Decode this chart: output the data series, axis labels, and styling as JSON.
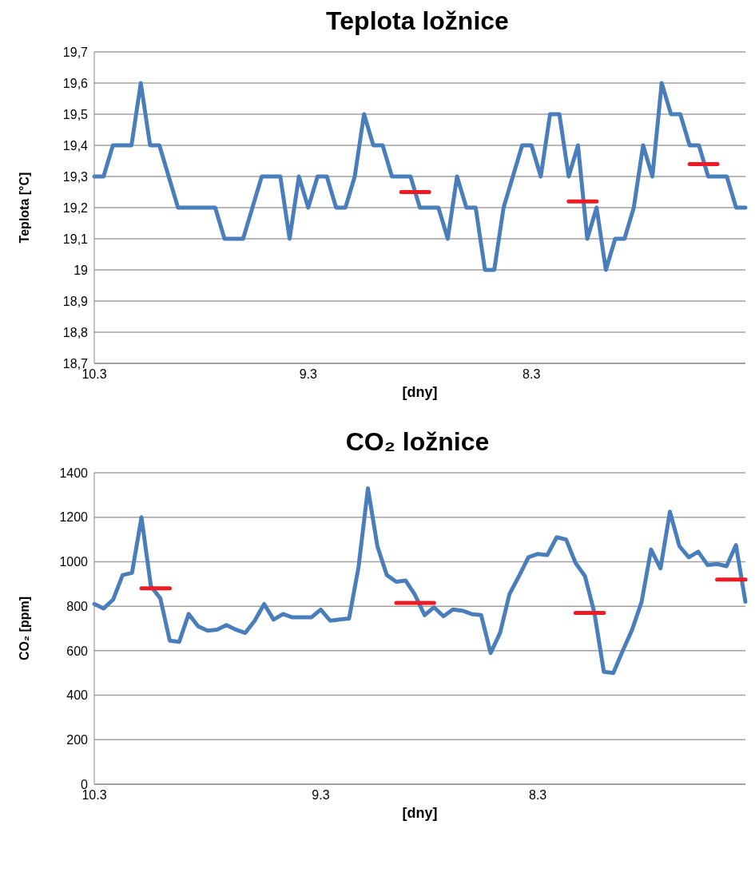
{
  "chart_data": [
    {
      "type": "line",
      "title": "Teplota  ložnice",
      "xlabel": "[dny]",
      "ylabel": "Teplota [°C]",
      "categories": [
        "10.3",
        null,
        null,
        null,
        null,
        null,
        null,
        null,
        null,
        null,
        null,
        null,
        null,
        null,
        null,
        null,
        null,
        null,
        null,
        null,
        null,
        null,
        null,
        "9.3",
        null,
        null,
        null,
        null,
        null,
        null,
        null,
        null,
        null,
        null,
        null,
        null,
        null,
        null,
        null,
        null,
        null,
        null,
        null,
        null,
        null,
        null,
        null,
        "8.3",
        null,
        null,
        null,
        null,
        null,
        null,
        null,
        null,
        null,
        null,
        null,
        null,
        null,
        null,
        null,
        null,
        null,
        null,
        null,
        null,
        null,
        null,
        null
      ],
      "series": [
        {
          "color": "#4a7ebb",
          "values": [
            19.3,
            19.3,
            19.4,
            19.4,
            19.4,
            19.6,
            19.4,
            19.4,
            19.3,
            19.2,
            19.2,
            19.2,
            19.2,
            19.2,
            19.1,
            19.1,
            19.1,
            19.2,
            19.3,
            19.3,
            19.3,
            19.1,
            19.3,
            19.2,
            19.3,
            19.3,
            19.2,
            19.2,
            19.3,
            19.5,
            19.4,
            19.4,
            19.3,
            19.3,
            19.3,
            19.2,
            19.2,
            19.2,
            19.1,
            19.3,
            19.2,
            19.2,
            19.0,
            19.0,
            19.2,
            19.3,
            19.4,
            19.4,
            19.3,
            19.5,
            19.5,
            19.3,
            19.4,
            19.1,
            19.2,
            19.0,
            19.1,
            19.1,
            19.2,
            19.4,
            19.3,
            19.6,
            19.5,
            19.5,
            19.4,
            19.4,
            19.3,
            19.3,
            19.3,
            19.2,
            19.2
          ]
        },
        {
          "color": "#ed1c24",
          "values": [
            null,
            null,
            null,
            null,
            null,
            null,
            null,
            null,
            null,
            null,
            null,
            null,
            null,
            null,
            null,
            null,
            null,
            null,
            null,
            null,
            null,
            null,
            null,
            null,
            null,
            null,
            null,
            null,
            null,
            null,
            null,
            null,
            null,
            19.25,
            19.25,
            19.25,
            19.25,
            null,
            null,
            null,
            null,
            null,
            null,
            null,
            null,
            null,
            null,
            null,
            null,
            null,
            null,
            19.22,
            19.22,
            19.22,
            19.22,
            null,
            null,
            null,
            null,
            null,
            null,
            null,
            null,
            null,
            19.34,
            19.34,
            19.34,
            19.34,
            null,
            null,
            null
          ]
        }
      ],
      "ylim": [
        18.7,
        19.7
      ],
      "yticks": [
        {
          "value": 18.7,
          "label": "18,7"
        },
        {
          "value": 18.8,
          "label": "18,8"
        },
        {
          "value": 18.9,
          "label": "18,9"
        },
        {
          "value": 19,
          "label": "19"
        },
        {
          "value": 19.1,
          "label": "19,1"
        },
        {
          "value": 19.2,
          "label": "19,2"
        },
        {
          "value": 19.3,
          "label": "19,3"
        },
        {
          "value": 19.4,
          "label": "19,4"
        },
        {
          "value": 19.5,
          "label": "19,5"
        },
        {
          "value": 19.6,
          "label": "19,6"
        },
        {
          "value": 19.7,
          "label": "19,7"
        }
      ],
      "grid": "y"
    },
    {
      "type": "line",
      "title": "CO₂ ložnice",
      "xlabel": "[dny]",
      "ylabel": "CO₂ [ppm]",
      "categories": [
        "10.3",
        null,
        null,
        null,
        null,
        null,
        null,
        null,
        null,
        null,
        null,
        null,
        null,
        null,
        null,
        null,
        null,
        null,
        null,
        null,
        null,
        null,
        null,
        null,
        "9.3",
        null,
        null,
        null,
        null,
        null,
        null,
        null,
        null,
        null,
        null,
        null,
        null,
        null,
        null,
        null,
        null,
        null,
        null,
        null,
        null,
        null,
        null,
        "8.3",
        null,
        null,
        null,
        null,
        null,
        null,
        null,
        null,
        null,
        null,
        null,
        null,
        null,
        null,
        null,
        null,
        null,
        null,
        null,
        null,
        null,
        null
      ],
      "series": [
        {
          "color": "#4a7ebb",
          "values": [
            810,
            790,
            830,
            940,
            950,
            1200,
            890,
            835,
            645,
            640,
            765,
            710,
            690,
            695,
            715,
            695,
            680,
            735,
            810,
            740,
            765,
            750,
            750,
            750,
            785,
            735,
            740,
            745,
            975,
            1330,
            1070,
            940,
            910,
            915,
            850,
            760,
            795,
            755,
            785,
            780,
            765,
            760,
            590,
            680,
            855,
            935,
            1020,
            1035,
            1030,
            1110,
            1100,
            995,
            935,
            770,
            505,
            500,
            600,
            695,
            820,
            1055,
            970,
            1225,
            1070,
            1020,
            1045,
            985,
            990,
            980,
            1075,
            820
          ]
        },
        {
          "color": "#ed1c24",
          "values": [
            null,
            null,
            null,
            null,
            null,
            880,
            880,
            880,
            880,
            null,
            null,
            null,
            null,
            null,
            null,
            null,
            null,
            null,
            null,
            null,
            null,
            null,
            null,
            null,
            null,
            null,
            null,
            null,
            null,
            null,
            null,
            null,
            815,
            815,
            815,
            815,
            815,
            null,
            null,
            null,
            null,
            null,
            null,
            null,
            null,
            null,
            null,
            null,
            null,
            null,
            null,
            770,
            770,
            770,
            770,
            null,
            null,
            null,
            null,
            null,
            null,
            null,
            null,
            null,
            null,
            null,
            920,
            920,
            920,
            920
          ]
        }
      ],
      "ylim": [
        0,
        1400
      ],
      "yticks": [
        0,
        200,
        400,
        600,
        800,
        1000,
        1200,
        1400
      ],
      "grid": "y"
    }
  ]
}
